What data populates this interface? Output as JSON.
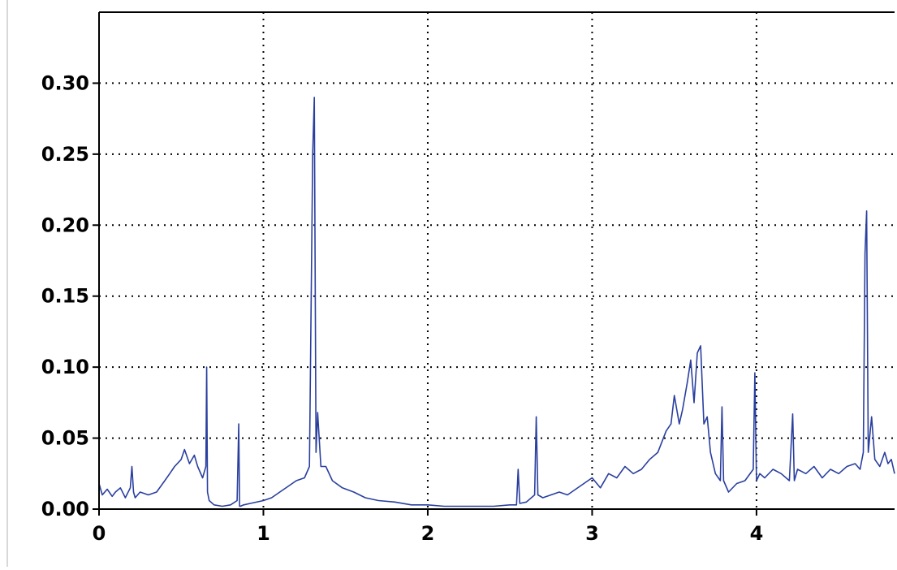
{
  "chart_data": {
    "type": "line",
    "title": "",
    "xlabel": "",
    "ylabel": "",
    "xlim": [
      0,
      4.84
    ],
    "ylim": [
      0,
      0.35
    ],
    "grid": true,
    "legend": "none",
    "xticks": [
      0,
      1,
      2,
      3,
      4
    ],
    "xtick_labels": [
      "0",
      "1",
      "2",
      "3",
      "4"
    ],
    "yticks": [
      0,
      0.05,
      0.1,
      0.15,
      0.2,
      0.25,
      0.3
    ],
    "ytick_labels": [
      "0.00",
      "0.05",
      "0.10",
      "0.15",
      "0.20",
      "0.25",
      "0.30"
    ],
    "colors": {
      "line": "#2a3f9e",
      "grid": "#000000",
      "axis": "#000000",
      "background": "#ffffff"
    },
    "series": [
      {
        "x": [
          0.0,
          0.02,
          0.05,
          0.08,
          0.1,
          0.13,
          0.16,
          0.19,
          0.2,
          0.21,
          0.22,
          0.25,
          0.3,
          0.35,
          0.4,
          0.43,
          0.46,
          0.5,
          0.52,
          0.55,
          0.58,
          0.6,
          0.63,
          0.65,
          0.655,
          0.66,
          0.67,
          0.7,
          0.75,
          0.8,
          0.84,
          0.85,
          0.855,
          0.86,
          0.88,
          0.92,
          1.0,
          1.05,
          1.1,
          1.15,
          1.2,
          1.25,
          1.28,
          1.3,
          1.31,
          1.32,
          1.33,
          1.35,
          1.38,
          1.42,
          1.48,
          1.55,
          1.62,
          1.7,
          1.8,
          1.9,
          2.0,
          2.1,
          2.2,
          2.3,
          2.4,
          2.5,
          2.54,
          2.55,
          2.56,
          2.6,
          2.65,
          2.66,
          2.67,
          2.7,
          2.75,
          2.8,
          2.85,
          2.9,
          2.95,
          3.0,
          3.05,
          3.1,
          3.15,
          3.2,
          3.25,
          3.3,
          3.35,
          3.4,
          3.45,
          3.48,
          3.5,
          3.53,
          3.55,
          3.58,
          3.6,
          3.62,
          3.64,
          3.66,
          3.68,
          3.7,
          3.72,
          3.75,
          3.78,
          3.79,
          3.8,
          3.83,
          3.88,
          3.93,
          3.98,
          3.99,
          4.0,
          4.02,
          4.05,
          4.1,
          4.15,
          4.2,
          4.22,
          4.23,
          4.25,
          4.3,
          4.35,
          4.4,
          4.45,
          4.5,
          4.55,
          4.6,
          4.63,
          4.65,
          4.66,
          4.67,
          4.68,
          4.7,
          4.72,
          4.75,
          4.78,
          4.8,
          4.82,
          4.84
        ],
        "y": [
          0.018,
          0.01,
          0.014,
          0.009,
          0.012,
          0.015,
          0.008,
          0.015,
          0.03,
          0.012,
          0.008,
          0.012,
          0.01,
          0.012,
          0.02,
          0.025,
          0.03,
          0.035,
          0.042,
          0.032,
          0.038,
          0.03,
          0.022,
          0.03,
          0.1,
          0.012,
          0.006,
          0.003,
          0.002,
          0.003,
          0.006,
          0.06,
          0.002,
          0.002,
          0.003,
          0.004,
          0.006,
          0.008,
          0.012,
          0.016,
          0.02,
          0.022,
          0.03,
          0.25,
          0.29,
          0.04,
          0.068,
          0.03,
          0.03,
          0.02,
          0.015,
          0.012,
          0.008,
          0.006,
          0.005,
          0.003,
          0.003,
          0.002,
          0.002,
          0.002,
          0.002,
          0.003,
          0.003,
          0.028,
          0.004,
          0.005,
          0.01,
          0.065,
          0.01,
          0.008,
          0.01,
          0.012,
          0.01,
          0.014,
          0.018,
          0.022,
          0.015,
          0.025,
          0.022,
          0.03,
          0.025,
          0.028,
          0.035,
          0.04,
          0.055,
          0.06,
          0.08,
          0.06,
          0.07,
          0.09,
          0.105,
          0.075,
          0.11,
          0.115,
          0.06,
          0.065,
          0.04,
          0.025,
          0.02,
          0.072,
          0.02,
          0.012,
          0.018,
          0.02,
          0.028,
          0.096,
          0.02,
          0.025,
          0.022,
          0.028,
          0.025,
          0.02,
          0.067,
          0.02,
          0.028,
          0.025,
          0.03,
          0.022,
          0.028,
          0.025,
          0.03,
          0.032,
          0.028,
          0.04,
          0.18,
          0.21,
          0.04,
          0.065,
          0.035,
          0.03,
          0.04,
          0.032,
          0.035,
          0.025
        ]
      }
    ]
  }
}
